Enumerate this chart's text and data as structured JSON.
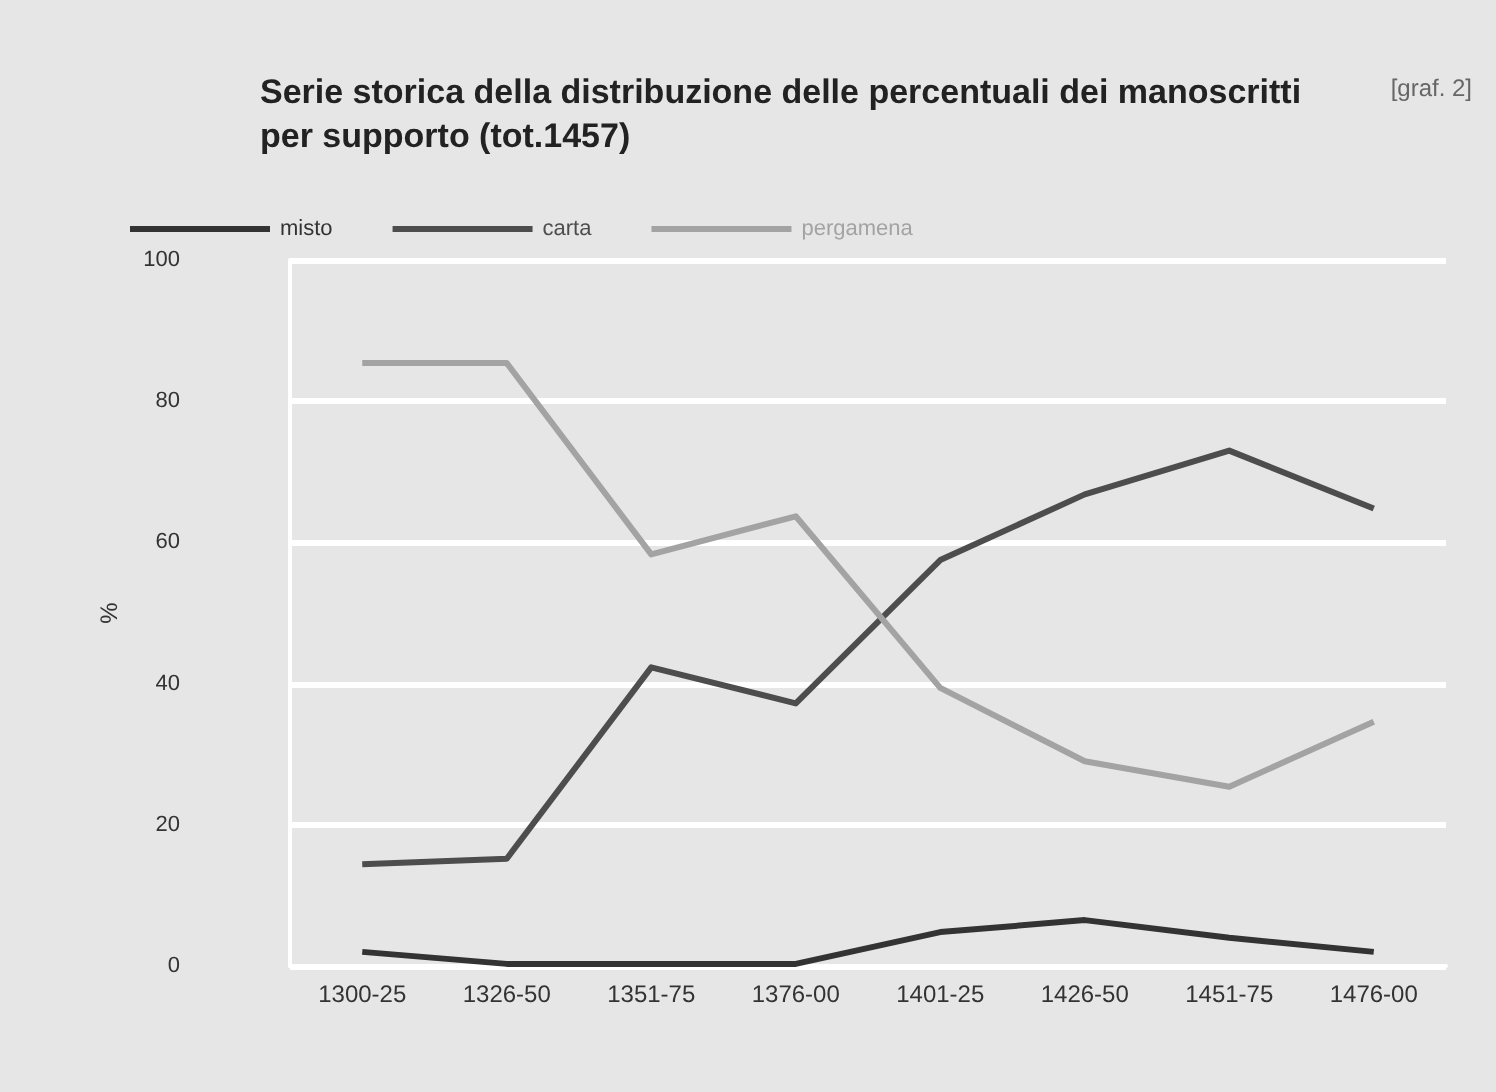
{
  "chart_data": {
    "type": "line",
    "title": "Serie storica della distribuzione delle percentuali dei manoscritti\nper supporto (tot.1457)",
    "ylabel": "%",
    "annotations": [
      "[graf. 2]"
    ],
    "categories": [
      "1300-25",
      "1326-50",
      "1351-75",
      "1376-00",
      "1401-25",
      "1426-50",
      "1451-75",
      "1476-00"
    ],
    "series": [
      {
        "name": "misto",
        "color": "#333333",
        "values": [
          2,
          0.3,
          0.3,
          0.3,
          4.8,
          6.5,
          4,
          2
        ]
      },
      {
        "name": "carta",
        "color": "#4d4d4d",
        "values": [
          14.4,
          15.2,
          42.3,
          37.2,
          57.5,
          66.8,
          73,
          64.8
        ]
      },
      {
        "name": "pergamena",
        "color": "#a3a3a3",
        "values": [
          85.4,
          85.4,
          58.3,
          63.7,
          39.4,
          29,
          25.4,
          34.6
        ]
      }
    ],
    "ylim": [
      0,
      100
    ],
    "yticks": [
      0,
      20,
      40,
      60,
      80,
      100
    ],
    "grid": "y",
    "legend": "top left",
    "marker": "none",
    "line_style": "solid"
  }
}
